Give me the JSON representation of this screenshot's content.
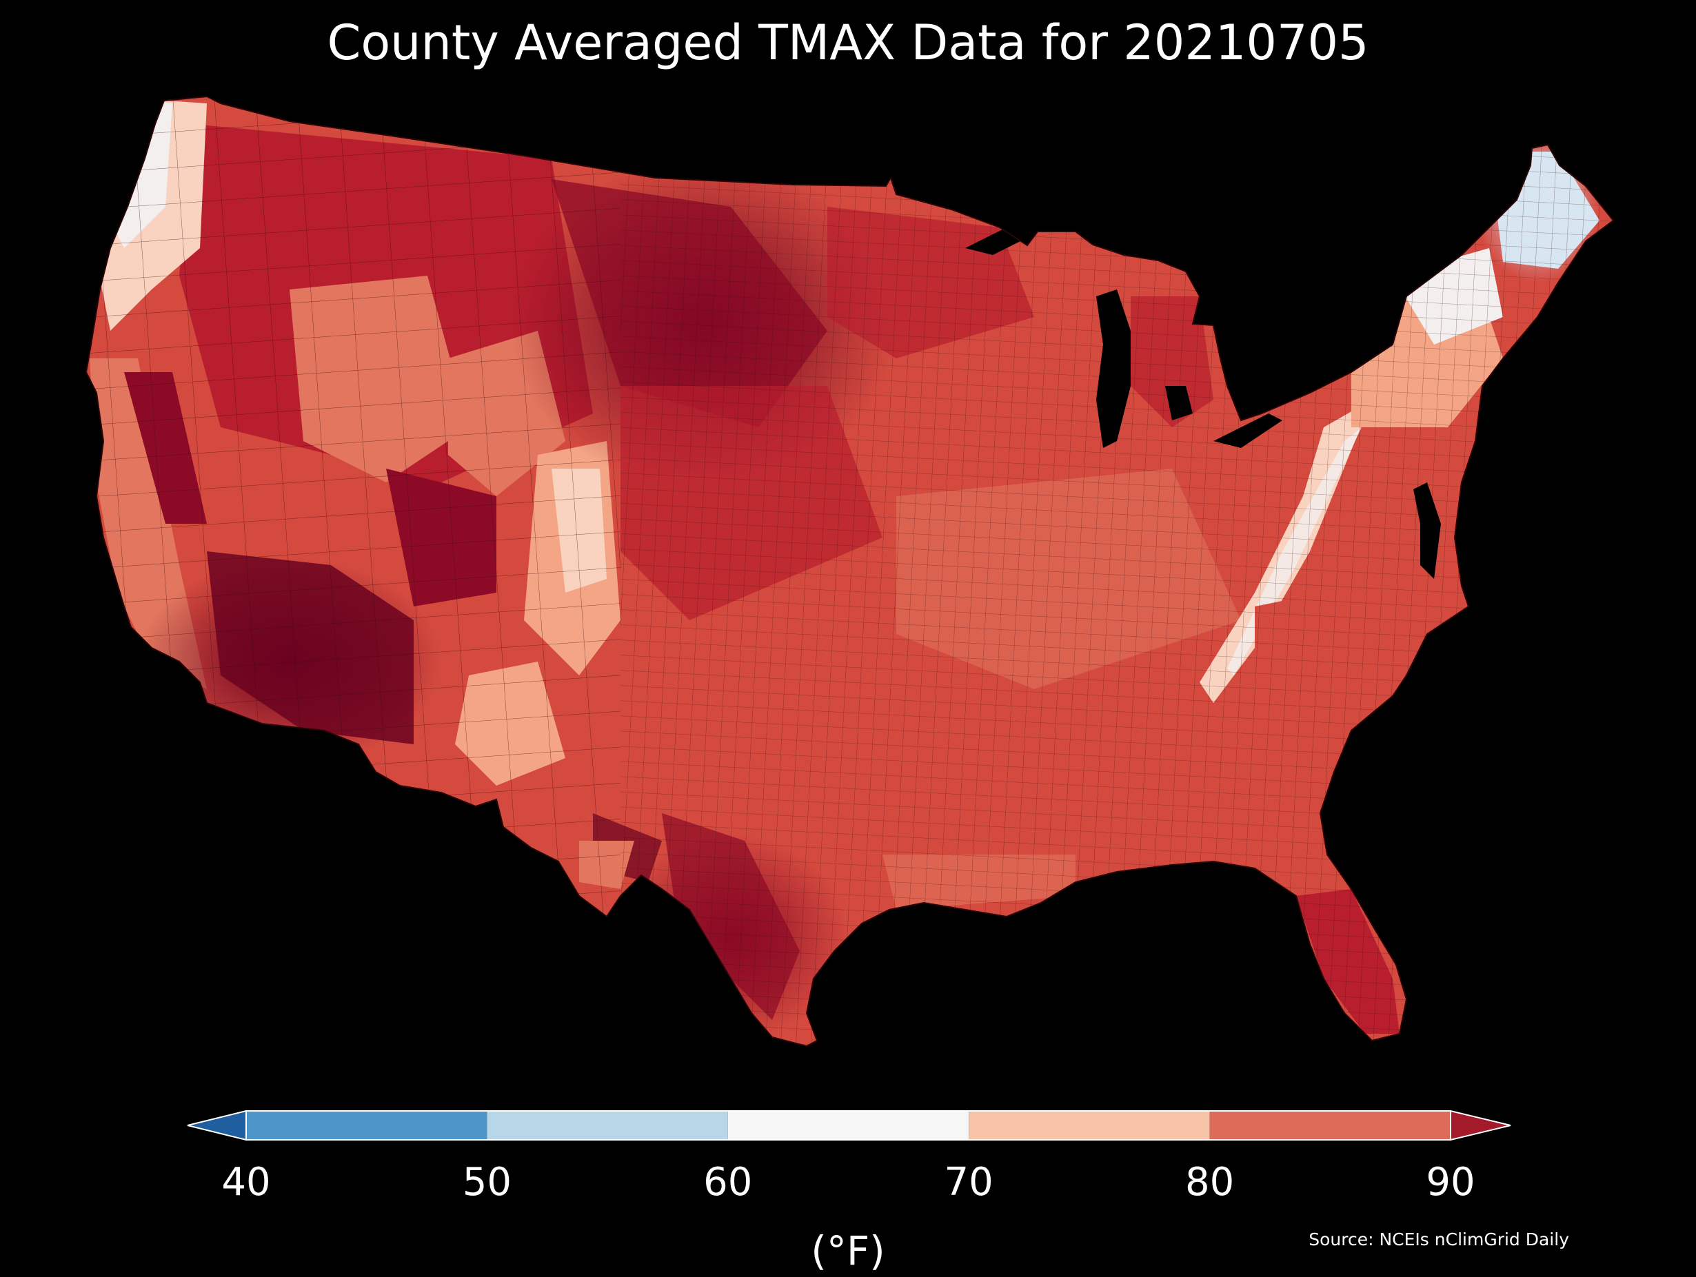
{
  "title": "County Averaged TMAX Data for 20210705",
  "source": "Source: NCEIs nClimGrid Daily",
  "colorbar": {
    "unit_label": "(°F)",
    "ticks": [
      "40",
      "50",
      "60",
      "70",
      "80",
      "90"
    ],
    "bins": [
      {
        "from": 40,
        "to": 50,
        "color": "#4d96c7"
      },
      {
        "from": 50,
        "to": 60,
        "color": "#b7d7e9"
      },
      {
        "from": 60,
        "to": 70,
        "color": "#f6f6f6"
      },
      {
        "from": 70,
        "to": 80,
        "color": "#f8c4a9"
      },
      {
        "from": 80,
        "to": 90,
        "color": "#dc6b57"
      }
    ],
    "under_color": "#1f5e9f",
    "over_color": "#a31a2a",
    "extend": "both"
  },
  "map": {
    "type": "choropleth",
    "region": "contiguous-us-counties",
    "variable": "TMAX",
    "background": "#000000",
    "palette": {
      "darkest_hot": "#6b0220",
      "very_hot": "#8c0a25",
      "hot": "#b81e2d",
      "warm": "#d44a3f",
      "mild_warm": "#e2765e",
      "mild": "#f3a585",
      "cool_mild": "#f9d3bf",
      "neutral": "#f2efee",
      "cool": "#d7e6f1",
      "border": "#3a0a0a"
    },
    "regions": [
      {
        "name": "pacific-northwest-coast",
        "class": "neutral"
      },
      {
        "name": "northern-rockies",
        "class": "hot"
      },
      {
        "name": "northern-plains-core",
        "class": "darkest_hot"
      },
      {
        "name": "great-basin",
        "class": "warm"
      },
      {
        "name": "colorado-rockies",
        "class": "cool_mild"
      },
      {
        "name": "desert-southwest",
        "class": "darkest_hot"
      },
      {
        "name": "central-plains",
        "class": "hot"
      },
      {
        "name": "midwest",
        "class": "warm"
      },
      {
        "name": "appalachians",
        "class": "cool_mild"
      },
      {
        "name": "mid-atlantic-southeast",
        "class": "warm"
      },
      {
        "name": "new-england-south",
        "class": "mild"
      },
      {
        "name": "northern-new-england",
        "class": "cool"
      },
      {
        "name": "south-texas",
        "class": "very_hot"
      },
      {
        "name": "florida",
        "class": "hot"
      }
    ]
  }
}
